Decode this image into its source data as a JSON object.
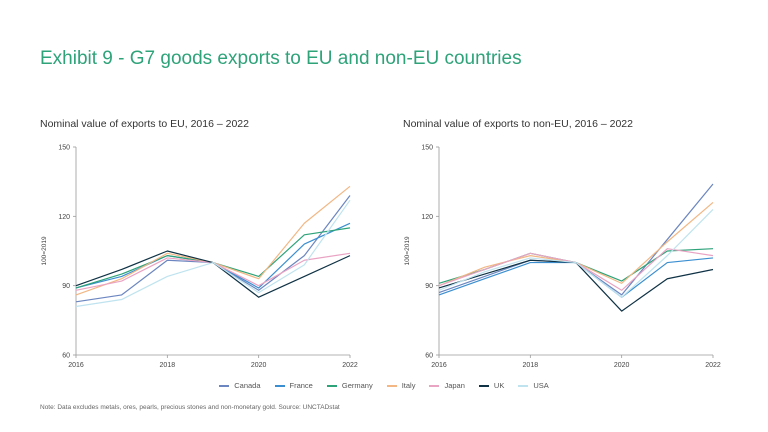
{
  "title": "Exhibit 9 - G7 goods exports to EU and non-EU countries",
  "note": "Note: Data excludes metals, ores, pearls, precious stones and non-monetary gold. Source: UNCTADstat",
  "legend": [
    {
      "name": "Canada",
      "color": "#6b86c0"
    },
    {
      "name": "France",
      "color": "#3b8fd0"
    },
    {
      "name": "Germany",
      "color": "#2ea37a"
    },
    {
      "name": "Italy",
      "color": "#f2b784"
    },
    {
      "name": "Japan",
      "color": "#e9a3c3"
    },
    {
      "name": "UK",
      "color": "#0f3245"
    },
    {
      "name": "USA",
      "color": "#bfe3ef"
    }
  ],
  "chart_data": [
    {
      "type": "line",
      "title": "Nominal value of exports to EU, 2016 – 2022",
      "xlabel": "",
      "ylabel": "100=2019",
      "x": [
        2016,
        2017,
        2018,
        2019,
        2020,
        2021,
        2022
      ],
      "xticks": [
        "2016",
        "2018",
        "2020",
        "2022"
      ],
      "yticks": [
        "60",
        "90",
        "120",
        "150"
      ],
      "ylim": [
        60,
        150
      ],
      "series": [
        {
          "name": "Canada",
          "values": [
            83,
            86,
            101,
            100,
            88,
            103,
            129
          ]
        },
        {
          "name": "France",
          "values": [
            89,
            94,
            103,
            100,
            89,
            108,
            117
          ]
        },
        {
          "name": "Germany",
          "values": [
            89,
            95,
            103,
            100,
            94,
            112,
            115
          ]
        },
        {
          "name": "Italy",
          "values": [
            86,
            93,
            104,
            100,
            93,
            117,
            133
          ]
        },
        {
          "name": "Japan",
          "values": [
            88,
            92,
            102,
            100,
            90,
            101,
            104
          ]
        },
        {
          "name": "UK",
          "values": [
            90,
            97,
            105,
            100,
            85,
            94,
            103
          ]
        },
        {
          "name": "USA",
          "values": [
            81,
            84,
            94,
            100,
            87,
            99,
            127
          ]
        }
      ]
    },
    {
      "type": "line",
      "title": "Nominal value of exports to non-EU, 2016 – 2022",
      "xlabel": "",
      "ylabel": "100=2019",
      "x": [
        2016,
        2017,
        2018,
        2019,
        2020,
        2021,
        2022
      ],
      "xticks": [
        "2016",
        "2018",
        "2020",
        "2022"
      ],
      "yticks": [
        "60",
        "90",
        "120",
        "150"
      ],
      "ylim": [
        60,
        150
      ],
      "series": [
        {
          "name": "Canada",
          "values": [
            87,
            94,
            101,
            100,
            86,
            110,
            134
          ]
        },
        {
          "name": "France",
          "values": [
            86,
            93,
            100,
            100,
            85,
            100,
            102
          ]
        },
        {
          "name": "Germany",
          "values": [
            91,
            97,
            104,
            100,
            92,
            105,
            106
          ]
        },
        {
          "name": "Italy",
          "values": [
            90,
            98,
            103,
            100,
            91,
            109,
            126
          ]
        },
        {
          "name": "Japan",
          "values": [
            90,
            97,
            104,
            100,
            88,
            106,
            103
          ]
        },
        {
          "name": "UK",
          "values": [
            89,
            95,
            101,
            100,
            79,
            93,
            97
          ]
        },
        {
          "name": "USA",
          "values": [
            88,
            96,
            102,
            100,
            85,
            103,
            123
          ]
        }
      ]
    }
  ]
}
